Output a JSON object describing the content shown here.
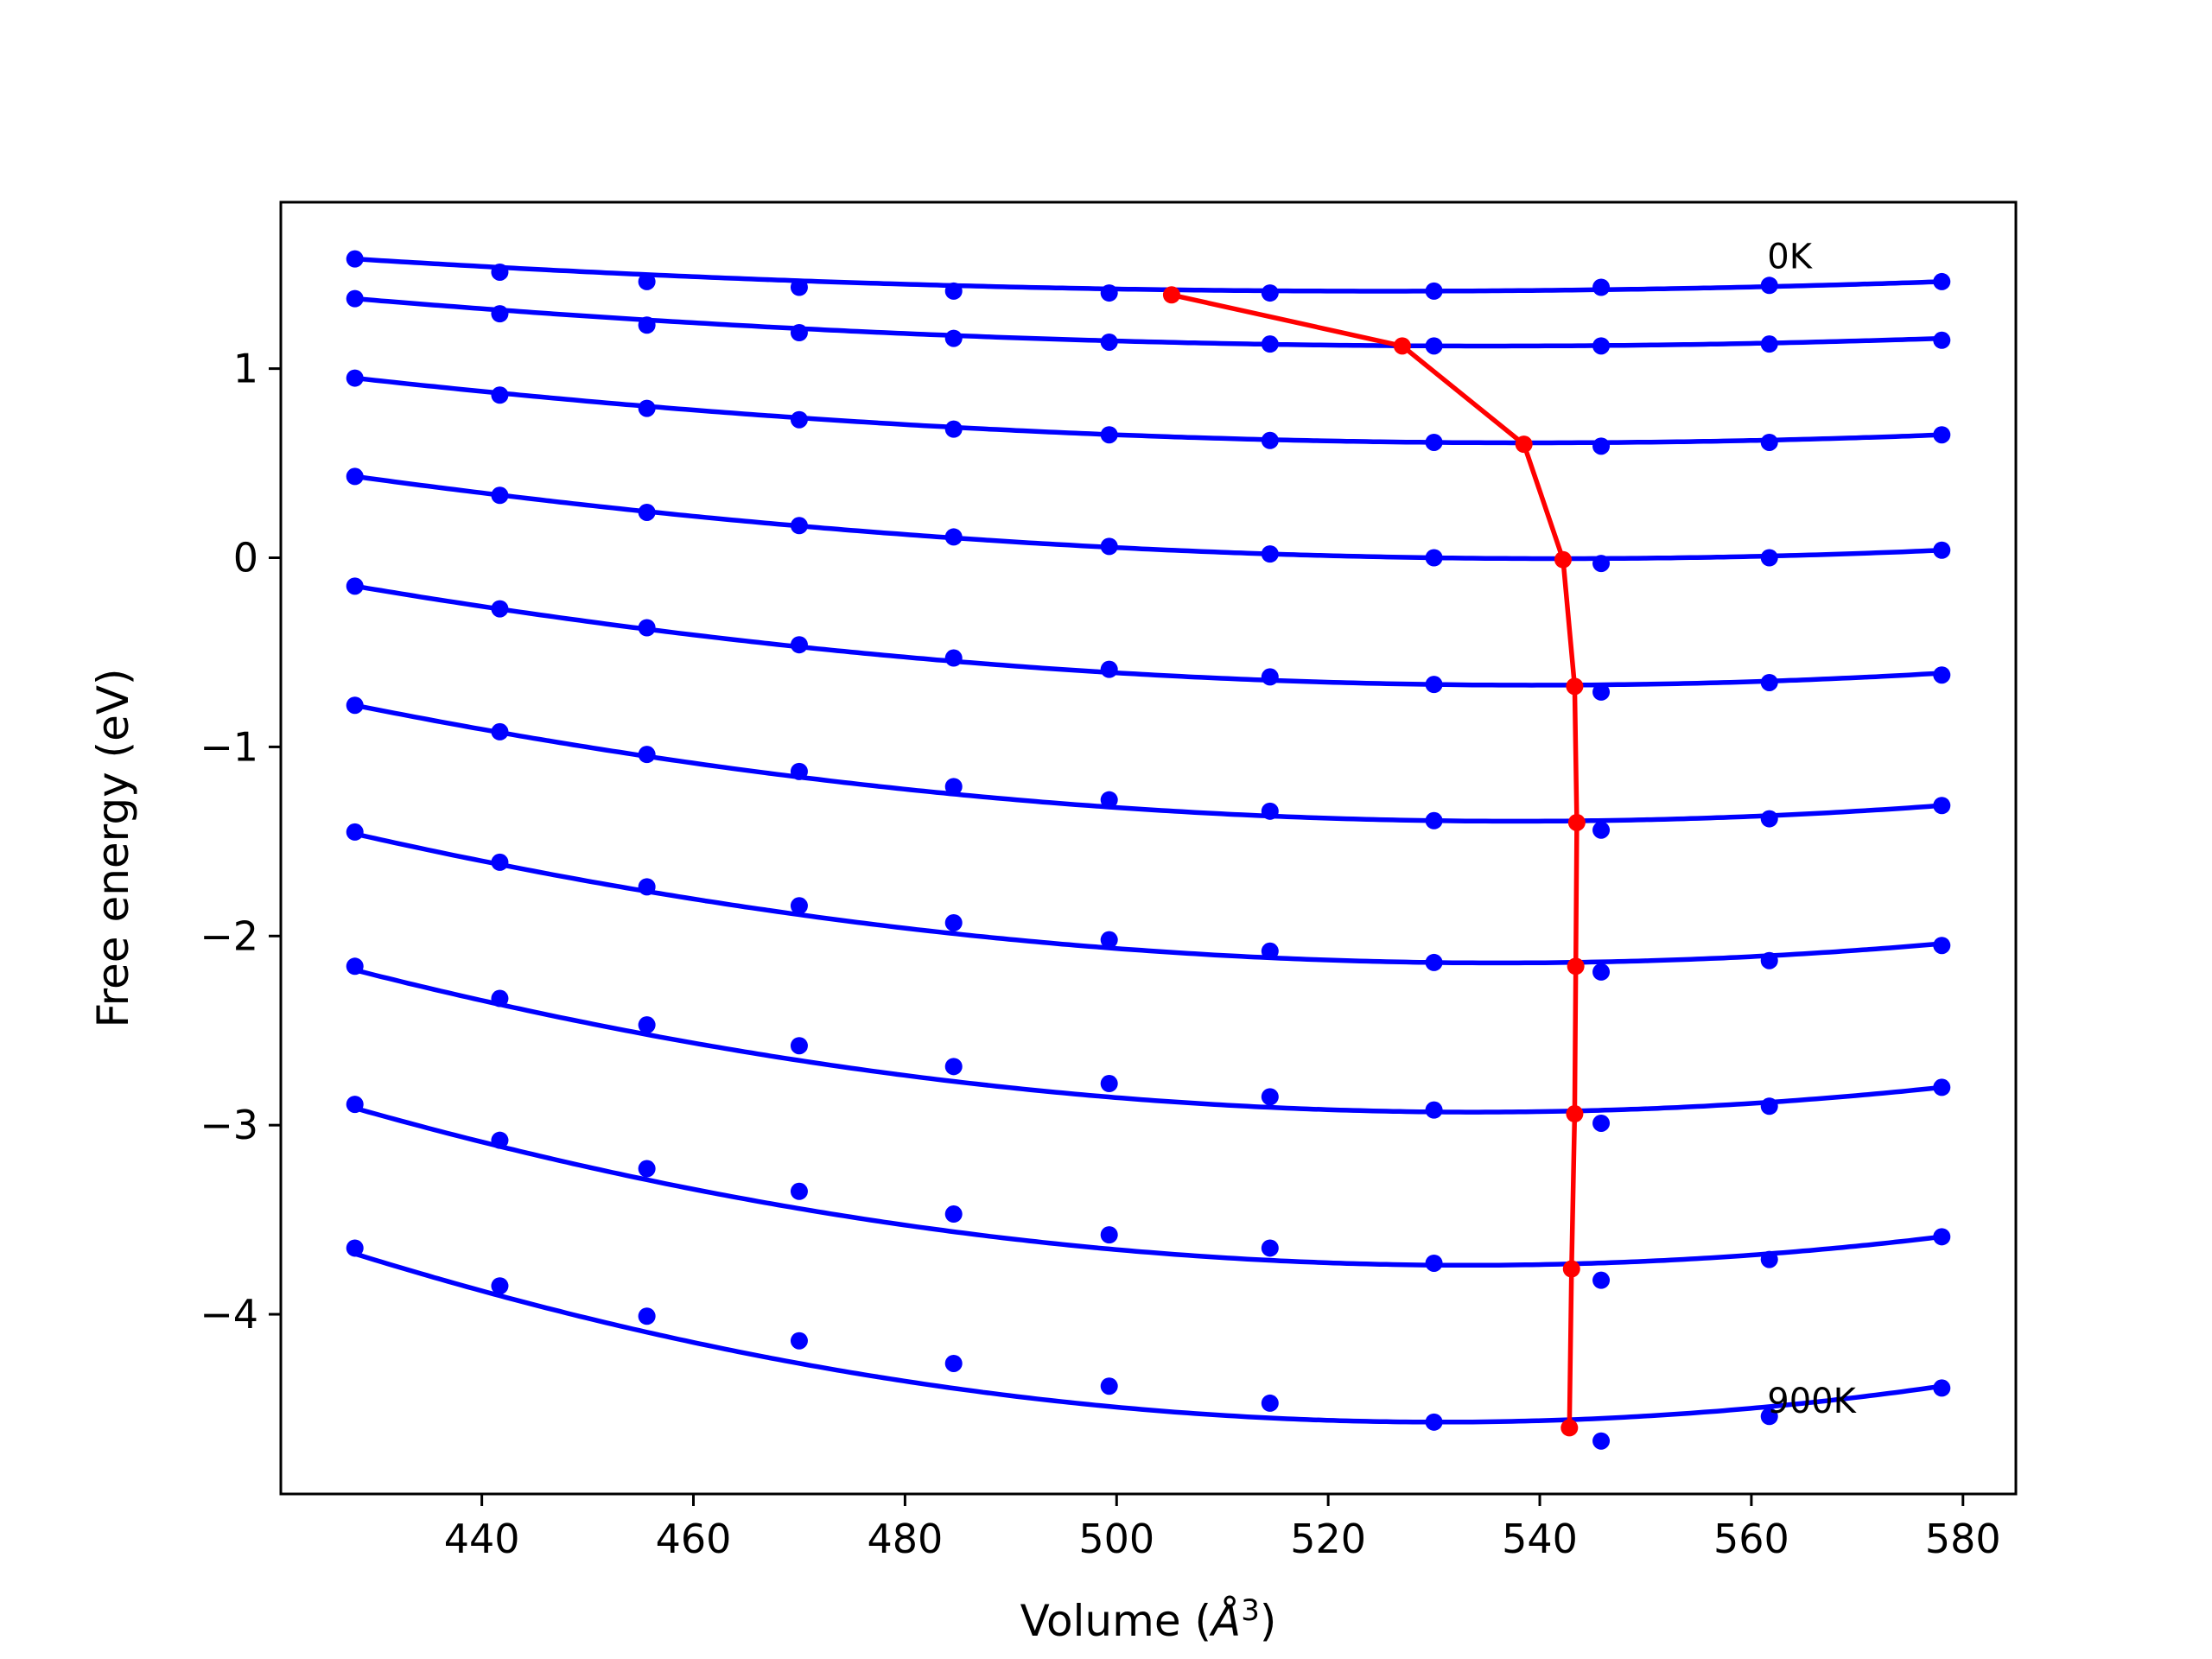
{
  "chart_data": {
    "type": "line",
    "xlabel": "Volume (",
    "xlabel_symbol": "Å",
    "xlabel_superscript": "3",
    "xlabel_close": ")",
    "ylabel": "Free energy (eV)",
    "xlim": [
      421,
      585
    ],
    "ylim": [
      -4.95,
      1.88
    ],
    "xticks": [
      440,
      460,
      480,
      500,
      520,
      540,
      560,
      580
    ],
    "xtick_labels": [
      "440",
      "460",
      "480",
      "500",
      "520",
      "540",
      "560",
      "580"
    ],
    "yticks": [
      1,
      0,
      -1,
      -2,
      -3,
      -4
    ],
    "ytick_labels": [
      "1",
      "0",
      "−1",
      "−2",
      "−3",
      "−4"
    ],
    "grid": false,
    "legend": "none",
    "colors": {
      "curves": "#0000ff",
      "points": "#0000ff",
      "minimum_path": "#ff0000"
    },
    "annotations": [
      {
        "text": "0K",
        "x": 561.5,
        "y": 1.53
      },
      {
        "text": "900K",
        "x": 561.5,
        "y": -4.52
      }
    ],
    "volumes": [
      428.0,
      441.7,
      455.6,
      470.0,
      484.6,
      499.3,
      514.5,
      530.0,
      545.8,
      561.7,
      578.0
    ],
    "series": [
      {
        "values": [
          1.58,
          1.51,
          1.46,
          1.43,
          1.41,
          1.4,
          1.4,
          1.41,
          1.43,
          1.44,
          1.46
        ],
        "fit": [
          1.58,
          1.41,
          1.46
        ]
      },
      {
        "values": [
          1.37,
          1.29,
          1.23,
          1.19,
          1.16,
          1.14,
          1.13,
          1.12,
          1.12,
          1.13,
          1.15
        ],
        "fit": [
          1.37,
          1.12,
          1.16
        ]
      },
      {
        "values": [
          0.95,
          0.86,
          0.79,
          0.73,
          0.68,
          0.65,
          0.62,
          0.61,
          0.59,
          0.61,
          0.65
        ],
        "fit": [
          0.95,
          0.61,
          0.65
        ]
      },
      {
        "values": [
          0.43,
          0.33,
          0.24,
          0.17,
          0.11,
          0.06,
          0.02,
          0.0,
          -0.03,
          0.0,
          0.04
        ],
        "fit": [
          0.43,
          0.0,
          0.04
        ]
      },
      {
        "values": [
          -0.15,
          -0.27,
          -0.37,
          -0.46,
          -0.53,
          -0.59,
          -0.63,
          -0.67,
          -0.71,
          -0.66,
          -0.62
        ],
        "fit": [
          -0.15,
          -0.67,
          -0.61
        ]
      },
      {
        "values": [
          -0.78,
          -0.92,
          -1.04,
          -1.13,
          -1.21,
          -1.28,
          -1.34,
          -1.39,
          -1.44,
          -1.38,
          -1.31
        ],
        "fit": [
          -0.78,
          -1.39,
          -1.31
        ]
      },
      {
        "values": [
          -1.45,
          -1.61,
          -1.74,
          -1.84,
          -1.93,
          -2.02,
          -2.08,
          -2.14,
          -2.19,
          -2.13,
          -2.05
        ],
        "fit": [
          -1.46,
          -2.14,
          -2.04
        ]
      },
      {
        "values": [
          -2.16,
          -2.33,
          -2.47,
          -2.58,
          -2.69,
          -2.78,
          -2.85,
          -2.92,
          -2.99,
          -2.9,
          -2.8
        ],
        "fit": [
          -2.18,
          -2.93,
          -2.8
        ]
      },
      {
        "values": [
          -2.89,
          -3.08,
          -3.23,
          -3.35,
          -3.47,
          -3.58,
          -3.65,
          -3.73,
          -3.82,
          -3.71,
          -3.59
        ],
        "fit": [
          -2.91,
          -3.74,
          -3.59
        ]
      },
      {
        "values": [
          -3.65,
          -3.85,
          -4.01,
          -4.14,
          -4.26,
          -4.38,
          -4.47,
          -4.57,
          -4.67,
          -4.54,
          -4.39
        ],
        "fit": [
          -3.68,
          -4.57,
          -4.38
        ]
      }
    ],
    "minimum_path": {
      "x": [
        505.2,
        527.0,
        538.5,
        542.2,
        543.3,
        543.5,
        543.4,
        543.3,
        543.0,
        542.8
      ],
      "y": [
        1.39,
        1.12,
        0.6,
        -0.01,
        -0.68,
        -1.4,
        -2.16,
        -2.94,
        -3.76,
        -4.6
      ]
    }
  }
}
